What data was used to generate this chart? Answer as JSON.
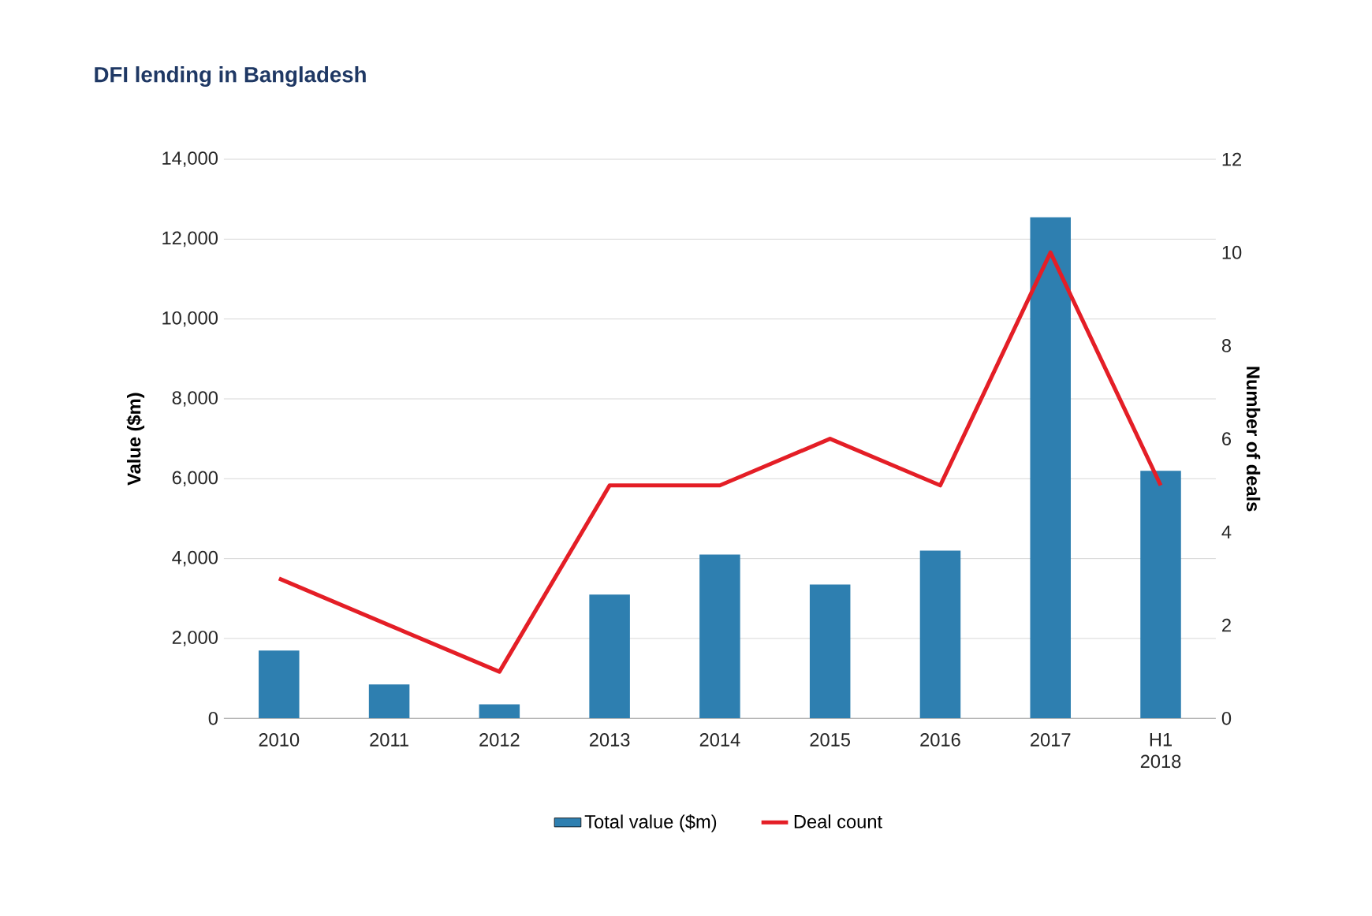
{
  "chart_data": {
    "type": "bar",
    "title": "DFI lending in Bangladesh",
    "categories": [
      "2010",
      "2011",
      "2012",
      "2013",
      "2014",
      "2015",
      "2016",
      "2017",
      "H1 2018"
    ],
    "ylabel": "Value ($m)",
    "y2label": "Number of deals",
    "ylim": [
      0,
      14000
    ],
    "yticks": [
      {
        "value": 0,
        "label": "0"
      },
      {
        "value": 2000,
        "label": "2,000"
      },
      {
        "value": 4000,
        "label": "4,000"
      },
      {
        "value": 6000,
        "label": "6,000"
      },
      {
        "value": 8000,
        "label": "8,000"
      },
      {
        "value": 10000,
        "label": "10,000"
      },
      {
        "value": 12000,
        "label": "12,000"
      },
      {
        "value": 14000,
        "label": "14,000"
      }
    ],
    "y2lim": [
      0,
      12
    ],
    "y2ticks": [
      0,
      2,
      4,
      6,
      8,
      10,
      12
    ],
    "grid": "y",
    "legend": "bottom",
    "marker": "none",
    "line_style": "solid",
    "series": [
      {
        "name": "Total value ($m)",
        "color": "#2e7fb0",
        "values": [
          1700,
          850,
          350,
          3100,
          4100,
          3350,
          4200,
          12550,
          6200
        ]
      },
      {
        "name": "Deal count",
        "type": "line",
        "axis": "y2",
        "color": "#e41e26",
        "values": [
          3,
          2,
          1,
          5,
          5,
          6,
          5,
          10,
          5
        ]
      }
    ]
  }
}
